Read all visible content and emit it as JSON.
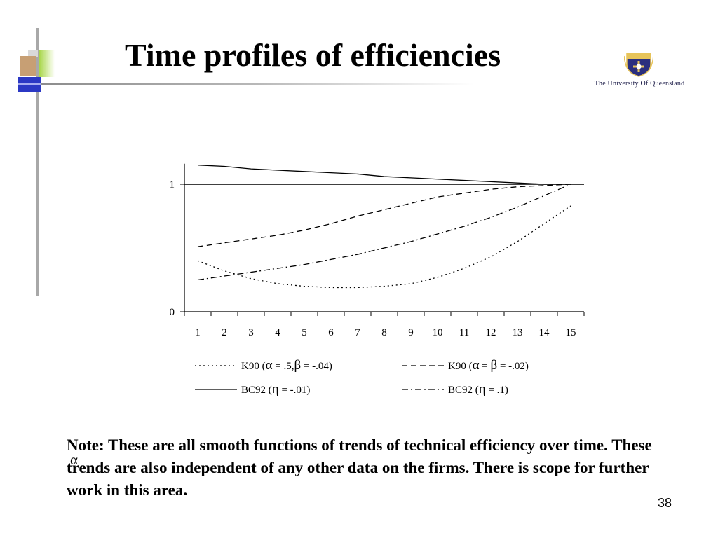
{
  "slide": {
    "title": "Time profiles of efficiencies",
    "note": "Note: These are all smooth functions of trends of technical efficiency over time. These trends are also independent of any other data on the firms. There is scope for further work in this area.",
    "stray_symbol": "α",
    "slide_number": "38"
  },
  "logo": {
    "text": "The University Of Queensland",
    "colors": {
      "shield_blue": "#2b2f7e",
      "shield_gold": "#e7c45a"
    }
  },
  "chart_data": {
    "type": "line",
    "x": [
      1,
      2,
      3,
      4,
      5,
      6,
      7,
      8,
      9,
      10,
      11,
      12,
      13,
      14,
      15
    ],
    "xticks": [
      "1",
      "2",
      "3",
      "4",
      "5",
      "6",
      "7",
      "8",
      "9",
      "10",
      "11",
      "12",
      "13",
      "14",
      "15"
    ],
    "yticks": [
      "0",
      "1"
    ],
    "ylim": [
      0,
      1.15
    ],
    "reference_line": 1,
    "title": "",
    "xlabel": "",
    "ylabel": "",
    "grid": false,
    "legend_placement": "bottom",
    "series": [
      {
        "name": "K90 (α = .5, β = -.04)",
        "legend_parts": {
          "prefix": "K90 (",
          "a": "α",
          "mid1": " = .5,",
          "b": "β",
          "mid2": " = -.04)"
        },
        "style": "dotted",
        "values": [
          0.4,
          0.32,
          0.26,
          0.22,
          0.2,
          0.19,
          0.19,
          0.2,
          0.22,
          0.27,
          0.34,
          0.43,
          0.55,
          0.69,
          0.83
        ]
      },
      {
        "name": "K90 (α = β = -.02)",
        "legend_parts": {
          "prefix": "K90 (",
          "a": "α",
          "mid1": " = ",
          "b": "β",
          "mid2": " = -.02)"
        },
        "style": "dashed",
        "values": [
          0.51,
          0.54,
          0.57,
          0.6,
          0.64,
          0.69,
          0.75,
          0.8,
          0.85,
          0.9,
          0.93,
          0.96,
          0.98,
          0.99,
          1.0
        ]
      },
      {
        "name": "BC92 (η = -.01)",
        "legend_parts": {
          "prefix": "BC92 (",
          "a": "η",
          "mid1": " = -.01)",
          "b": "",
          "mid2": ""
        },
        "style": "solid",
        "values": [
          1.15,
          1.14,
          1.12,
          1.11,
          1.1,
          1.09,
          1.08,
          1.06,
          1.05,
          1.04,
          1.03,
          1.02,
          1.01,
          1.0,
          1.0
        ]
      },
      {
        "name": "BC92 (η = .1)",
        "legend_parts": {
          "prefix": "BC92 (",
          "a": "η",
          "mid1": " = .1)",
          "b": "",
          "mid2": ""
        },
        "style": "dashdot",
        "values": [
          0.25,
          0.28,
          0.31,
          0.34,
          0.37,
          0.41,
          0.45,
          0.5,
          0.55,
          0.61,
          0.67,
          0.74,
          0.82,
          0.91,
          1.0
        ]
      }
    ]
  }
}
